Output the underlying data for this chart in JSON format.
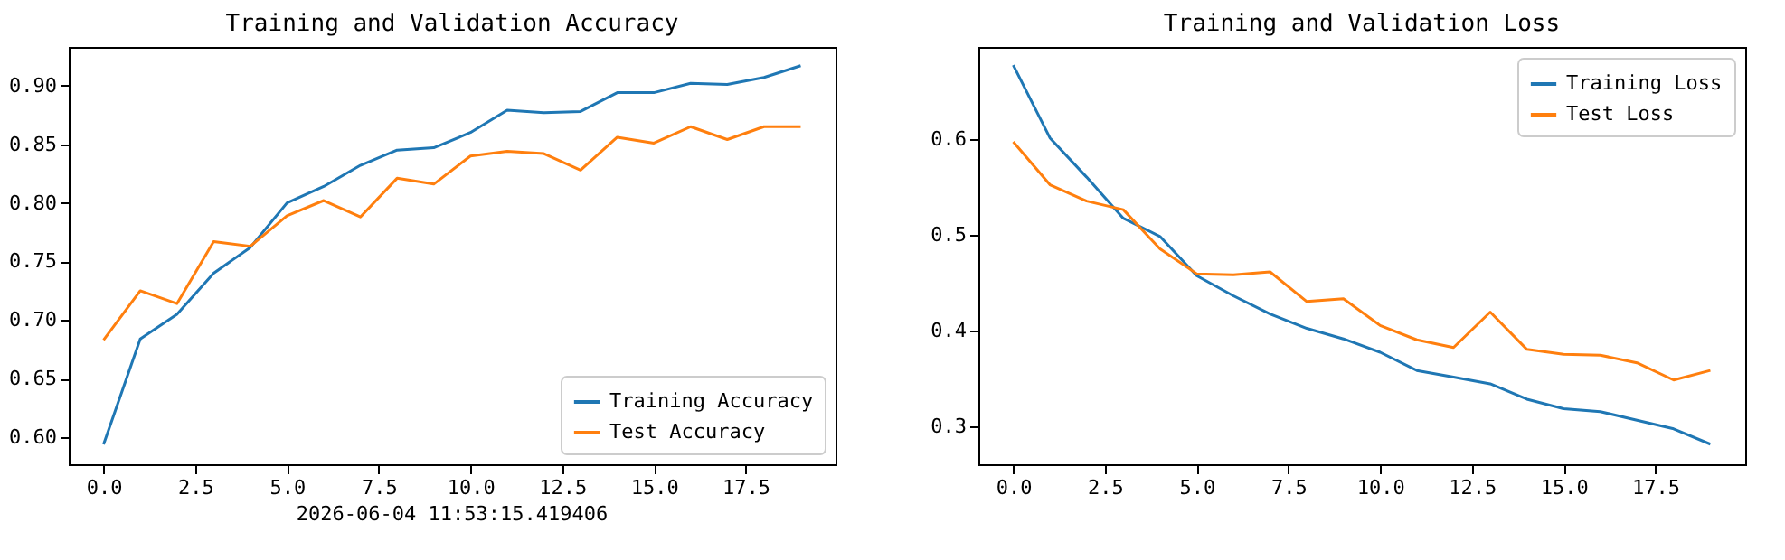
{
  "chart_data": [
    {
      "type": "line",
      "title": "Training and Validation Accuracy",
      "x": [
        0,
        1,
        2,
        3,
        4,
        5,
        6,
        7,
        8,
        9,
        10,
        11,
        12,
        13,
        14,
        15,
        16,
        17,
        18,
        19
      ],
      "series": [
        {
          "name": "Training Accuracy",
          "color": "#1f77b4",
          "values": [
            0.594,
            0.684,
            0.705,
            0.74,
            0.762,
            0.8,
            0.814,
            0.832,
            0.845,
            0.847,
            0.86,
            0.879,
            0.877,
            0.878,
            0.894,
            0.894,
            0.902,
            0.901,
            0.907,
            0.917
          ]
        },
        {
          "name": "Test Accuracy",
          "color": "#ff7f0e",
          "values": [
            0.683,
            0.725,
            0.714,
            0.767,
            0.763,
            0.789,
            0.802,
            0.788,
            0.821,
            0.816,
            0.84,
            0.844,
            0.842,
            0.828,
            0.856,
            0.851,
            0.865,
            0.854,
            0.865,
            0.865
          ]
        }
      ],
      "xlim": [
        -0.95,
        19.95
      ],
      "ylim": [
        0.577,
        0.933
      ],
      "xticks": [
        {
          "value": 0,
          "label": "0.0"
        },
        {
          "value": 2.5,
          "label": "2.5"
        },
        {
          "value": 5,
          "label": "5.0"
        },
        {
          "value": 7.5,
          "label": "7.5"
        },
        {
          "value": 10,
          "label": "10.0"
        },
        {
          "value": 12.5,
          "label": "12.5"
        },
        {
          "value": 15,
          "label": "15.0"
        },
        {
          "value": 17.5,
          "label": "17.5"
        }
      ],
      "yticks": [
        {
          "value": 0.6,
          "label": "0.60"
        },
        {
          "value": 0.65,
          "label": "0.65"
        },
        {
          "value": 0.7,
          "label": "0.70"
        },
        {
          "value": 0.75,
          "label": "0.75"
        },
        {
          "value": 0.8,
          "label": "0.80"
        },
        {
          "value": 0.85,
          "label": "0.85"
        },
        {
          "value": 0.9,
          "label": "0.90"
        }
      ],
      "legend": "bottom right",
      "annotations": [
        "2026-06-04 11:53:15.419406"
      ]
    },
    {
      "type": "line",
      "title": "Training and Validation Loss",
      "x": [
        0,
        1,
        2,
        3,
        4,
        5,
        6,
        7,
        8,
        9,
        10,
        11,
        12,
        13,
        14,
        15,
        16,
        17,
        18,
        19
      ],
      "series": [
        {
          "name": "Training Loss",
          "color": "#1f77b4",
          "values": [
            0.677,
            0.601,
            0.56,
            0.517,
            0.498,
            0.457,
            0.436,
            0.417,
            0.402,
            0.391,
            0.377,
            0.358,
            0.351,
            0.344,
            0.328,
            0.318,
            0.315,
            0.306,
            0.297,
            0.281
          ]
        },
        {
          "name": "Test Loss",
          "color": "#ff7f0e",
          "values": [
            0.597,
            0.552,
            0.535,
            0.526,
            0.485,
            0.459,
            0.458,
            0.461,
            0.43,
            0.433,
            0.405,
            0.39,
            0.382,
            0.419,
            0.38,
            0.375,
            0.374,
            0.366,
            0.348,
            0.358
          ]
        }
      ],
      "xlim": [
        -0.95,
        19.95
      ],
      "ylim": [
        0.26,
        0.696
      ],
      "xticks": [
        {
          "value": 0,
          "label": "0.0"
        },
        {
          "value": 2.5,
          "label": "2.5"
        },
        {
          "value": 5,
          "label": "5.0"
        },
        {
          "value": 7.5,
          "label": "7.5"
        },
        {
          "value": 10,
          "label": "10.0"
        },
        {
          "value": 12.5,
          "label": "12.5"
        },
        {
          "value": 15,
          "label": "15.0"
        },
        {
          "value": 17.5,
          "label": "17.5"
        }
      ],
      "yticks": [
        0.3,
        0.4,
        0.5,
        0.6
      ],
      "legend": "top right"
    }
  ]
}
